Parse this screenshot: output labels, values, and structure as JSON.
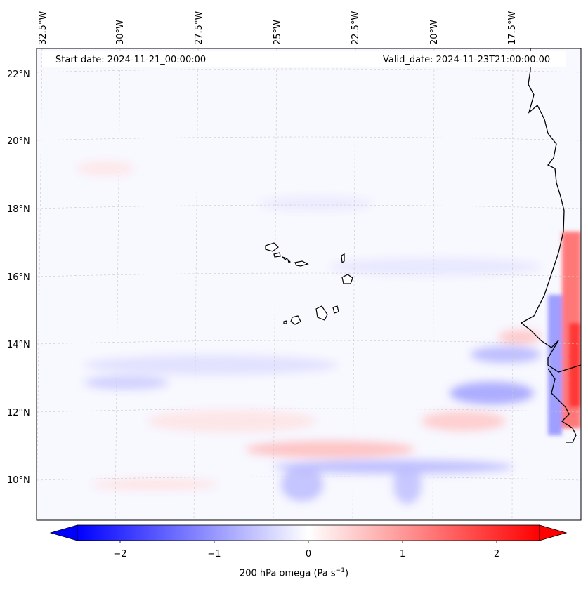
{
  "map": {
    "start_date": "Start date: 2024-11-21_00:00:00",
    "valid_date": "Valid_date: 2024-11-23T21:00:00.00",
    "lon_labels": [
      "32.5°W",
      "30°W",
      "27.5°W",
      "25°W",
      "22.5°W",
      "20°W",
      "17.5°W"
    ],
    "lat_labels": [
      "22°N",
      "20°N",
      "18°N",
      "16°N",
      "14°N",
      "12°N",
      "10°N"
    ],
    "variable": "200 hPa omega",
    "colormap": "bwr",
    "colors": {
      "negative": "#0000ff",
      "zero": "#ffffff",
      "positive": "#ff0000",
      "coastline": "#000000"
    }
  },
  "colorbar": {
    "label_text": "200 hPa omega (Pa s",
    "label_sup": "−1",
    "label_close": ")",
    "ticks": [
      "−2",
      "−1",
      "0",
      "1",
      "2"
    ],
    "range": [
      -2.7,
      2.7
    ],
    "extend": "both"
  }
}
